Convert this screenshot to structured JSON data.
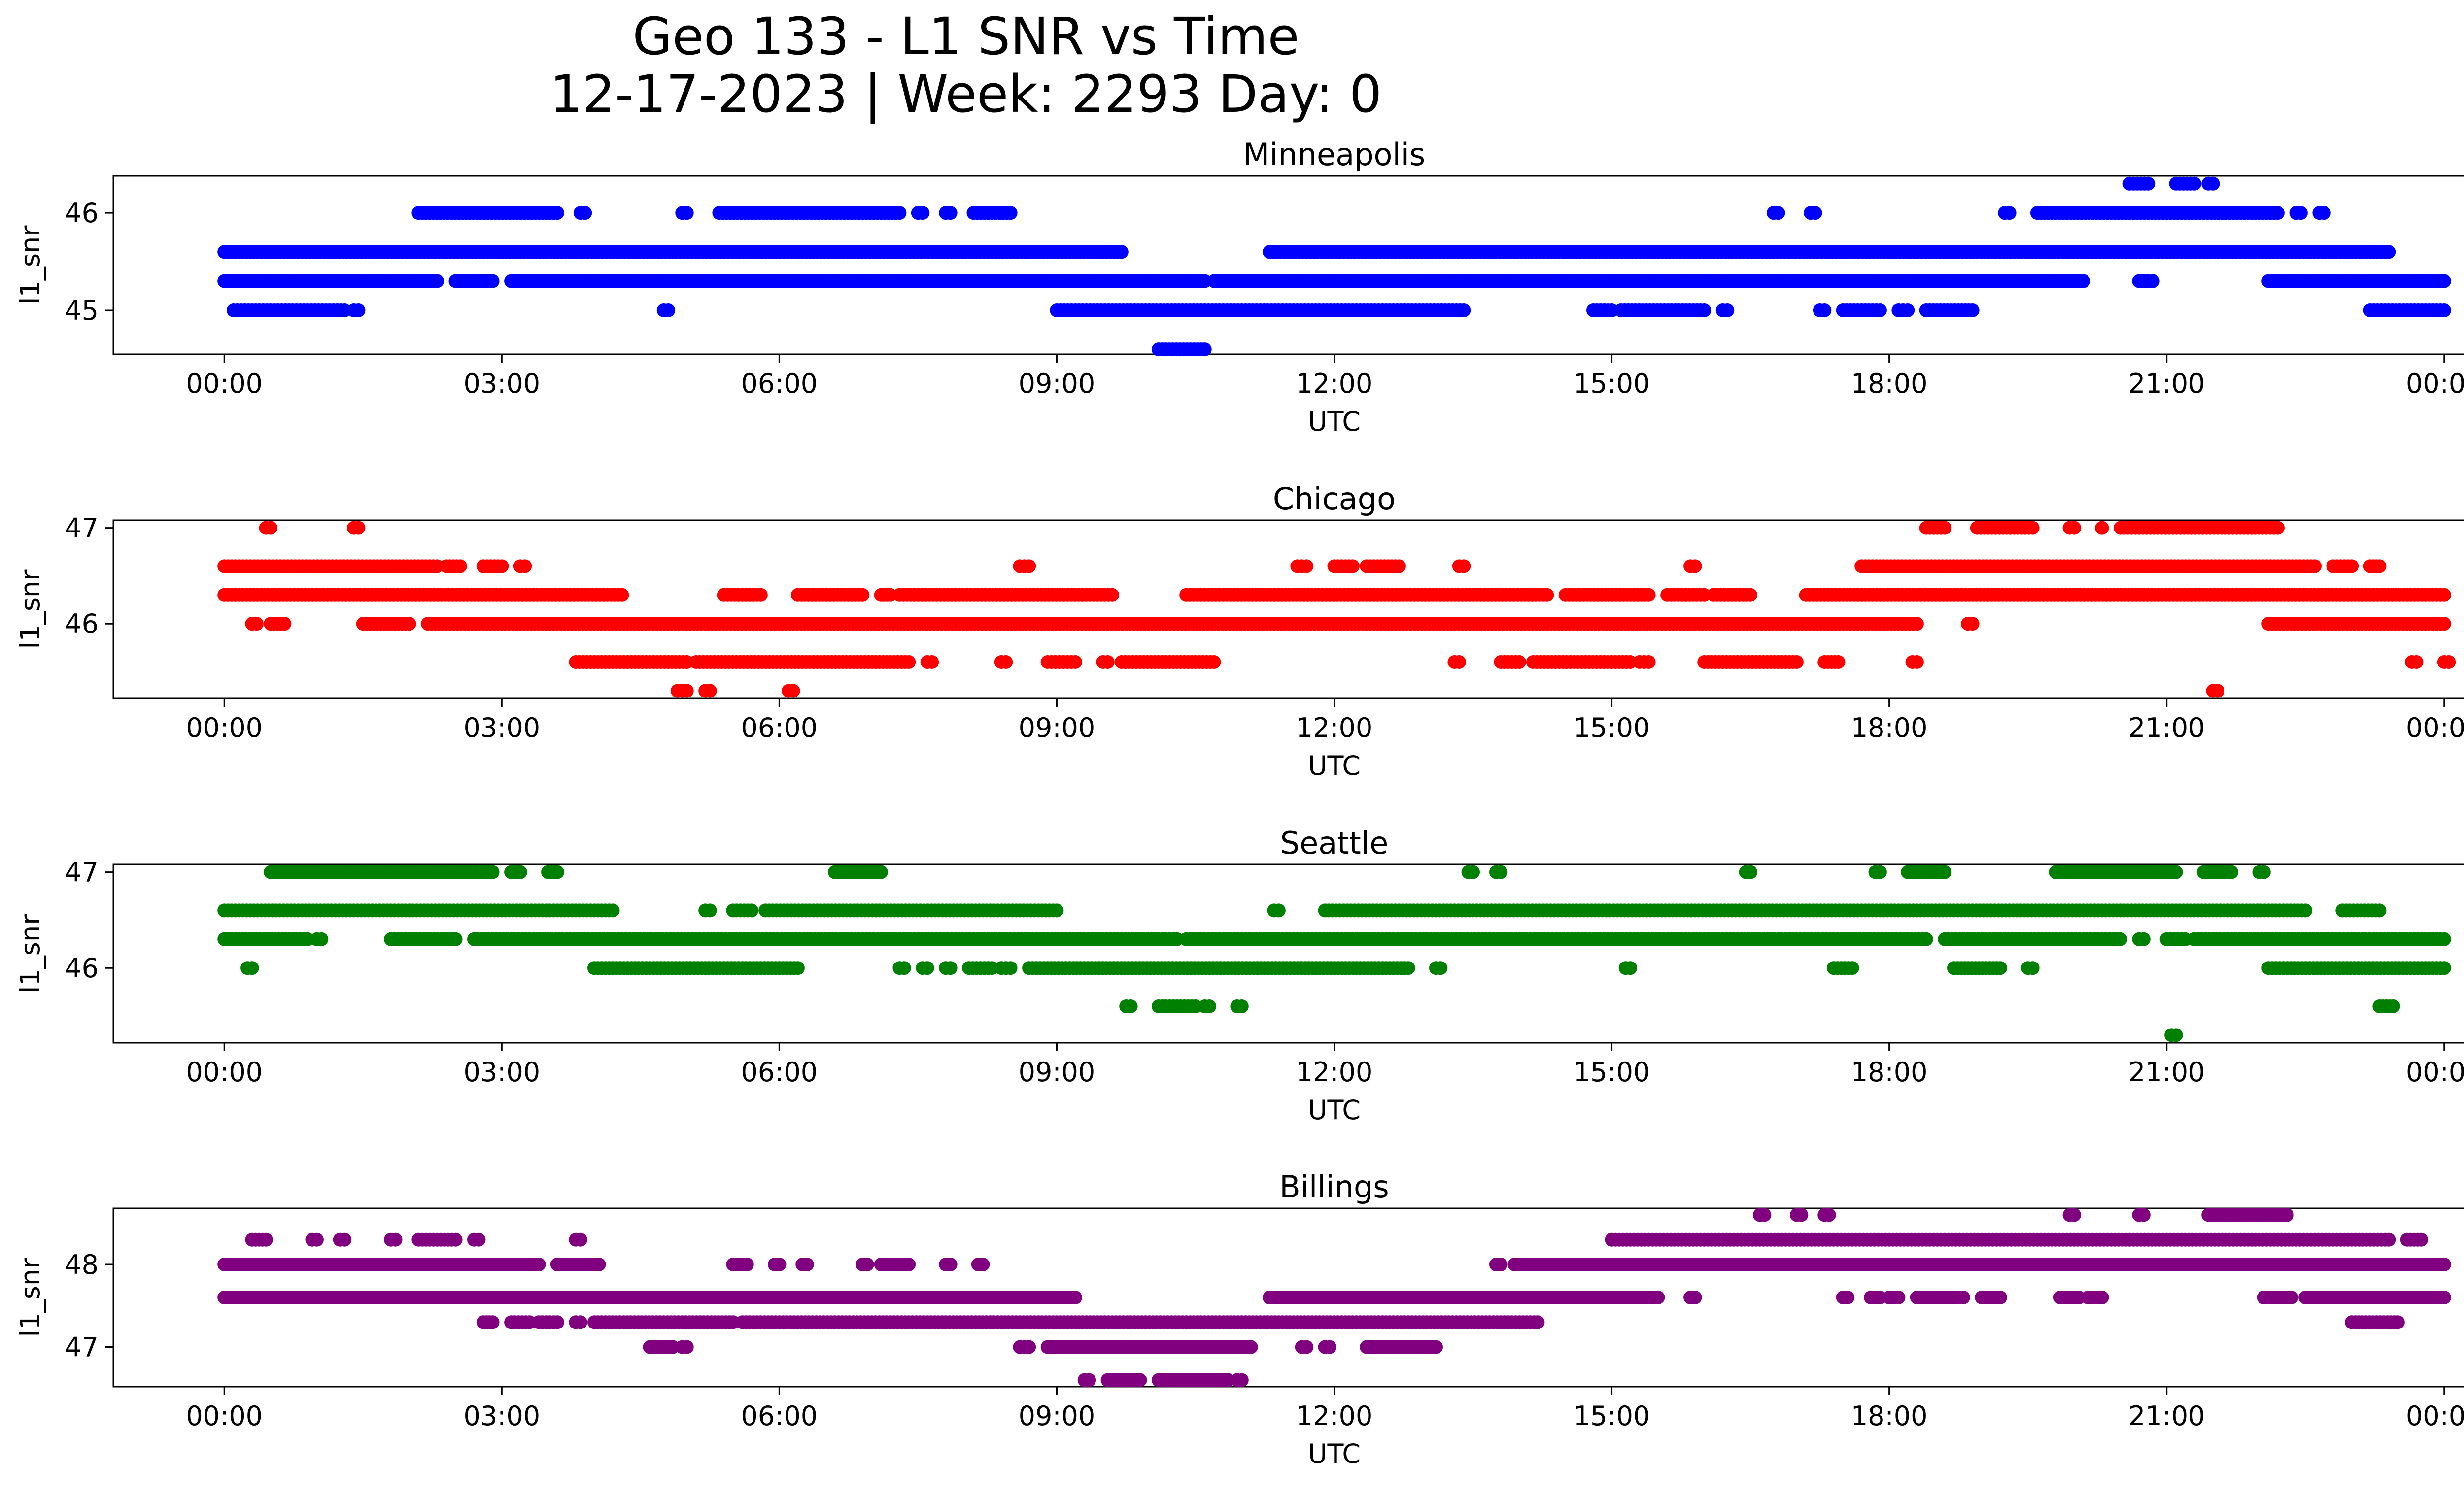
{
  "figure": {
    "title_line1": "Geo 133 - L1 SNR vs Time",
    "title_line2": "12-17-2023 | Week: 2293 Day: 0"
  },
  "chart_data": [
    {
      "type": "scatter",
      "title": "Minneapolis",
      "xlabel": "UTC",
      "ylabel": "l1_snr",
      "color": "#0000ff",
      "x_unit": "hours UTC",
      "xlim": [
        -1.2,
        25.2
      ],
      "xticks": [
        0,
        3,
        6,
        9,
        12,
        15,
        18,
        21,
        24
      ],
      "xtick_labels": [
        "00:00",
        "03:00",
        "06:00",
        "09:00",
        "12:00",
        "15:00",
        "18:00",
        "21:00",
        "00:00"
      ],
      "ylim": [
        44.55,
        46.38
      ],
      "yticks": [
        45,
        46
      ],
      "ytick_labels": [
        "45",
        "46"
      ],
      "series": [
        {
          "name": "l1_snr",
          "y": 45.6,
          "segments": [
            [
              0,
              9.7
            ],
            [
              11.3,
              23.4
            ]
          ]
        },
        {
          "name": "l1_snr",
          "y": 45.3,
          "segments": [
            [
              0,
              2.3
            ],
            [
              2.5,
              2.9
            ],
            [
              3.1,
              10.6
            ],
            [
              10.7,
              20.1
            ],
            [
              20.7,
              20.8
            ],
            [
              22.1,
              24
            ]
          ]
        },
        {
          "name": "l1_snr",
          "y": 45.0,
          "segments": [
            [
              0.1,
              1.3
            ],
            [
              1.4,
              1.45
            ],
            [
              4.75,
              4.8
            ],
            [
              9.0,
              13.4
            ],
            [
              14.8,
              15.0
            ],
            [
              15.1,
              16.0
            ],
            [
              16.2,
              16.25
            ],
            [
              17.25,
              17.3
            ],
            [
              17.5,
              17.9
            ],
            [
              18.1,
              18.2
            ],
            [
              18.4,
              18.9
            ],
            [
              23.2,
              24
            ]
          ]
        },
        {
          "name": "l1_snr",
          "y": 44.6,
          "segments": [
            [
              10.1,
              10.6
            ]
          ]
        },
        {
          "name": "l1_snr",
          "y": 46.0,
          "segments": [
            [
              2.1,
              3.6
            ],
            [
              3.85,
              3.9
            ],
            [
              4.95,
              5.0
            ],
            [
              5.35,
              7.3
            ],
            [
              7.5,
              7.55
            ],
            [
              7.8,
              7.85
            ],
            [
              8.1,
              8.5
            ],
            [
              16.75,
              16.8
            ],
            [
              17.15,
              17.2
            ],
            [
              19.25,
              19.3
            ],
            [
              19.6,
              22.2
            ],
            [
              22.4,
              22.45
            ],
            [
              22.65,
              22.7
            ]
          ]
        },
        {
          "name": "l1_snr",
          "y": 46.3,
          "segments": [
            [
              20.6,
              20.8
            ],
            [
              21.1,
              21.3
            ],
            [
              21.45,
              21.5
            ]
          ]
        },
        {
          "name": "l1_snr",
          "y": 45.3,
          "segments": [
            [
              20.8,
              20.85
            ]
          ]
        }
      ]
    },
    {
      "type": "scatter",
      "title": "Chicago",
      "xlabel": "UTC",
      "ylabel": "l1_snr",
      "color": "#ff0000",
      "x_unit": "hours UTC",
      "xlim": [
        -1.2,
        25.2
      ],
      "xticks": [
        0,
        3,
        6,
        9,
        12,
        15,
        18,
        21,
        24
      ],
      "xtick_labels": [
        "00:00",
        "03:00",
        "06:00",
        "09:00",
        "12:00",
        "15:00",
        "18:00",
        "21:00",
        "00:00"
      ],
      "ylim": [
        45.22,
        47.08
      ],
      "yticks": [
        46,
        47
      ],
      "ytick_labels": [
        "46",
        "47"
      ],
      "series": [
        {
          "name": "l1_snr",
          "y": 46.6,
          "segments": [
            [
              0,
              2.3
            ],
            [
              2.4,
              2.55
            ],
            [
              2.8,
              3.0
            ],
            [
              3.2,
              3.25
            ],
            [
              8.6,
              8.7
            ],
            [
              11.6,
              11.7
            ],
            [
              12.0,
              12.2
            ],
            [
              12.35,
              12.7
            ],
            [
              13.35,
              13.4
            ],
            [
              15.85,
              15.9
            ],
            [
              17.7,
              22.6
            ],
            [
              22.8,
              23.0
            ],
            [
              23.2,
              23.3
            ]
          ]
        },
        {
          "name": "l1_snr",
          "y": 46.3,
          "segments": [
            [
              0,
              4.3
            ],
            [
              5.4,
              5.8
            ],
            [
              6.2,
              6.9
            ],
            [
              7.1,
              7.2
            ],
            [
              7.3,
              9.6
            ],
            [
              10.4,
              14.3
            ],
            [
              14.5,
              15.4
            ],
            [
              15.6,
              16.0
            ],
            [
              16.1,
              16.5
            ],
            [
              17.1,
              24
            ]
          ]
        },
        {
          "name": "l1_snr",
          "y": 46.0,
          "segments": [
            [
              0.3,
              0.35
            ],
            [
              0.5,
              0.65
            ],
            [
              1.5,
              2.0
            ],
            [
              2.2,
              18.3
            ],
            [
              18.85,
              18.9
            ],
            [
              22.1,
              24
            ]
          ]
        },
        {
          "name": "l1_snr",
          "y": 45.6,
          "segments": [
            [
              3.8,
              5.0
            ],
            [
              5.1,
              7.4
            ],
            [
              7.6,
              7.65
            ],
            [
              8.4,
              8.45
            ],
            [
              8.9,
              9.2
            ],
            [
              9.5,
              9.55
            ],
            [
              9.7,
              10.7
            ],
            [
              13.3,
              13.35
            ],
            [
              13.8,
              14.0
            ],
            [
              14.15,
              15.2
            ],
            [
              15.3,
              15.4
            ],
            [
              16.0,
              17.0
            ],
            [
              17.3,
              17.45
            ],
            [
              18.25,
              18.3
            ],
            [
              23.65,
              23.7
            ],
            [
              24.0,
              24.05
            ]
          ]
        },
        {
          "name": "l1_snr",
          "y": 47.0,
          "segments": [
            [
              0.45,
              0.5
            ],
            [
              1.4,
              1.45
            ],
            [
              18.4,
              18.6
            ],
            [
              18.95,
              19.55
            ],
            [
              19.95,
              20.0
            ],
            [
              20.3,
              20.3
            ],
            [
              20.5,
              22.2
            ]
          ]
        },
        {
          "name": "l1_snr",
          "y": 45.3,
          "segments": [
            [
              4.9,
              5.0
            ],
            [
              5.2,
              5.25
            ],
            [
              6.1,
              6.15
            ],
            [
              21.5,
              21.55
            ]
          ]
        }
      ]
    },
    {
      "type": "scatter",
      "title": "Seattle",
      "xlabel": "UTC",
      "ylabel": "l1_snr",
      "color": "#008000",
      "x_unit": "hours UTC",
      "xlim": [
        -1.2,
        25.2
      ],
      "xticks": [
        0,
        3,
        6,
        9,
        12,
        15,
        18,
        21,
        24
      ],
      "xtick_labels": [
        "00:00",
        "03:00",
        "06:00",
        "09:00",
        "12:00",
        "15:00",
        "18:00",
        "21:00",
        "00:00"
      ],
      "ylim": [
        45.22,
        47.08
      ],
      "yticks": [
        46,
        47
      ],
      "ytick_labels": [
        "46",
        "47"
      ],
      "series": [
        {
          "name": "l1_snr",
          "y": 47.0,
          "segments": [
            [
              0.5,
              2.9
            ],
            [
              3.1,
              3.2
            ],
            [
              3.5,
              3.6
            ],
            [
              6.6,
              7.1
            ],
            [
              13.45,
              13.5
            ],
            [
              13.75,
              13.8
            ],
            [
              16.45,
              16.5
            ],
            [
              17.85,
              17.9
            ],
            [
              18.2,
              18.6
            ],
            [
              19.8,
              21.1
            ],
            [
              21.4,
              21.7
            ],
            [
              22.0,
              22.05
            ]
          ]
        },
        {
          "name": "l1_snr",
          "y": 46.6,
          "segments": [
            [
              0,
              4.2
            ],
            [
              5.2,
              5.25
            ],
            [
              5.5,
              5.7
            ],
            [
              5.85,
              9.0
            ],
            [
              11.35,
              11.4
            ],
            [
              11.9,
              22.5
            ],
            [
              22.9,
              23.3
            ]
          ]
        },
        {
          "name": "l1_snr",
          "y": 46.3,
          "segments": [
            [
              0,
              0.9
            ],
            [
              1.0,
              1.05
            ],
            [
              1.8,
              2.5
            ],
            [
              2.7,
              10.3
            ],
            [
              10.4,
              18.4
            ],
            [
              18.6,
              20.5
            ],
            [
              20.7,
              20.75
            ],
            [
              21.0,
              21.2
            ],
            [
              21.3,
              24
            ]
          ]
        },
        {
          "name": "l1_snr",
          "y": 46.0,
          "segments": [
            [
              0.25,
              0.3
            ],
            [
              4.0,
              6.2
            ],
            [
              7.3,
              7.35
            ],
            [
              7.55,
              7.6
            ],
            [
              7.8,
              7.85
            ],
            [
              8.05,
              8.3
            ],
            [
              8.4,
              8.5
            ],
            [
              8.7,
              12.8
            ],
            [
              13.1,
              13.15
            ],
            [
              15.15,
              15.2
            ],
            [
              17.4,
              17.6
            ],
            [
              18.7,
              19.2
            ],
            [
              19.5,
              19.55
            ],
            [
              22.1,
              24
            ]
          ]
        },
        {
          "name": "l1_snr",
          "y": 45.6,
          "segments": [
            [
              9.75,
              9.8
            ],
            [
              10.1,
              10.5
            ],
            [
              10.6,
              10.65
            ],
            [
              10.95,
              11.0
            ],
            [
              23.3,
              23.45
            ]
          ]
        },
        {
          "name": "l1_snr",
          "y": 45.3,
          "segments": [
            [
              21.05,
              21.1
            ]
          ]
        }
      ]
    },
    {
      "type": "scatter",
      "title": "Billings",
      "xlabel": "UTC",
      "ylabel": "l1_snr",
      "color": "#800080",
      "x_unit": "hours UTC",
      "xlim": [
        -1.2,
        25.2
      ],
      "xticks": [
        0,
        3,
        6,
        9,
        12,
        15,
        18,
        21,
        24
      ],
      "xtick_labels": [
        "00:00",
        "03:00",
        "06:00",
        "09:00",
        "12:00",
        "15:00",
        "18:00",
        "21:00",
        "00:00"
      ],
      "ylim": [
        46.52,
        48.68
      ],
      "yticks": [
        47,
        48
      ],
      "ytick_labels": [
        "47",
        "48"
      ],
      "series": [
        {
          "name": "l1_snr",
          "y": 48.6,
          "segments": [
            [
              16.6,
              16.65
            ],
            [
              17.0,
              17.05
            ],
            [
              17.3,
              17.35
            ],
            [
              19.95,
              20.0
            ],
            [
              20.7,
              20.75
            ],
            [
              21.45,
              22.3
            ]
          ]
        },
        {
          "name": "l1_snr",
          "y": 48.3,
          "segments": [
            [
              0.3,
              0.45
            ],
            [
              0.95,
              1.0
            ],
            [
              1.25,
              1.3
            ],
            [
              1.8,
              1.85
            ],
            [
              2.1,
              2.5
            ],
            [
              2.7,
              2.75
            ],
            [
              3.8,
              3.85
            ],
            [
              15.0,
              23.4
            ],
            [
              23.6,
              23.75
            ]
          ]
        },
        {
          "name": "l1_snr",
          "y": 48.0,
          "segments": [
            [
              0,
              3.4
            ],
            [
              3.6,
              4.05
            ],
            [
              5.5,
              5.65
            ],
            [
              5.95,
              6.0
            ],
            [
              6.25,
              6.3
            ],
            [
              6.9,
              6.95
            ],
            [
              7.1,
              7.4
            ],
            [
              7.8,
              7.85
            ],
            [
              8.15,
              8.2
            ],
            [
              13.75,
              13.8
            ],
            [
              13.95,
              24
            ]
          ]
        },
        {
          "name": "l1_snr",
          "y": 47.6,
          "segments": [
            [
              0,
              9.2
            ],
            [
              11.3,
              14.3
            ],
            [
              14.35,
              14.85
            ],
            [
              14.9,
              15.5
            ],
            [
              15.85,
              15.9
            ],
            [
              17.5,
              17.55
            ],
            [
              17.8,
              17.9
            ],
            [
              18.0,
              18.1
            ],
            [
              18.3,
              18.8
            ],
            [
              19.0,
              19.2
            ],
            [
              19.85,
              20.05
            ],
            [
              20.15,
              20.3
            ],
            [
              22.05,
              22.35
            ],
            [
              22.5,
              22.55
            ],
            [
              22.6,
              24
            ]
          ]
        },
        {
          "name": "l1_snr",
          "y": 47.3,
          "segments": [
            [
              2.8,
              2.9
            ],
            [
              3.1,
              3.3
            ],
            [
              3.4,
              3.6
            ],
            [
              3.8,
              3.85
            ],
            [
              4.0,
              5.5
            ],
            [
              5.6,
              14.2
            ],
            [
              23.0,
              23.5
            ]
          ]
        },
        {
          "name": "l1_snr",
          "y": 47.0,
          "segments": [
            [
              4.6,
              4.85
            ],
            [
              4.95,
              5.0
            ],
            [
              8.6,
              8.7
            ],
            [
              8.9,
              11.1
            ],
            [
              11.65,
              11.7
            ],
            [
              11.9,
              11.95
            ],
            [
              12.35,
              13.1
            ]
          ]
        },
        {
          "name": "l1_snr",
          "y": 46.6,
          "segments": [
            [
              9.3,
              9.35
            ],
            [
              9.55,
              9.9
            ],
            [
              10.1,
              10.85
            ],
            [
              10.95,
              11.0
            ]
          ]
        }
      ]
    }
  ]
}
